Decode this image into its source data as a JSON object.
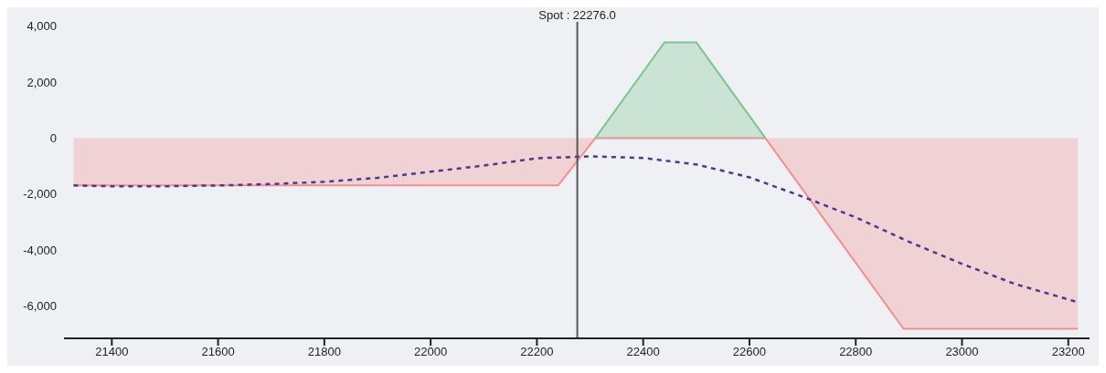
{
  "chart_data": {
    "type": "area",
    "series": [
      {
        "color": "#f28e8e",
        "x": [
          21328,
          22240,
          22310,
          22630,
          22890,
          23218
        ],
        "values": [
          -1690,
          -1690,
          0,
          0,
          -6810,
          -6810
        ]
      },
      {
        "color": "#78c78c",
        "x": [
          22310,
          22440,
          22500,
          22630
        ],
        "values": [
          0,
          3420,
          3420,
          0
        ]
      },
      {
        "type": "line",
        "color": "#4b3a8c",
        "line_style": "dotted",
        "x": [
          21328,
          21400,
          21500,
          21600,
          21700,
          21800,
          21900,
          22000,
          22100,
          22200,
          22300,
          22400,
          22500,
          22600,
          22700,
          22800,
          22900,
          23000,
          23100,
          23218
        ],
        "values": [
          -1690,
          -1720,
          -1720,
          -1690,
          -1640,
          -1560,
          -1420,
          -1200,
          -980,
          -720,
          -650,
          -710,
          -940,
          -1400,
          -2090,
          -2830,
          -3700,
          -4490,
          -5210,
          -5860
        ]
      }
    ],
    "xlim": [
      21310,
      23240
    ],
    "xticks": [
      21400,
      21600,
      21800,
      22000,
      22200,
      22400,
      22600,
      22800,
      23000,
      23200
    ],
    "ylim": [
      -7150,
      4150
    ],
    "yticks": [
      {
        "value": -6000,
        "label": "-6,000"
      },
      {
        "value": -4000,
        "label": "-4,000"
      },
      {
        "value": -2000,
        "label": "-2,000"
      },
      0,
      {
        "value": 2000,
        "label": "2,000"
      },
      {
        "value": 4000,
        "label": "4,000"
      }
    ],
    "ref_lines": [
      {
        "axis": "x",
        "value": 22276,
        "label": "Spot : 22276.0",
        "color": "#555555"
      }
    ],
    "grid": false,
    "legend": false
  }
}
